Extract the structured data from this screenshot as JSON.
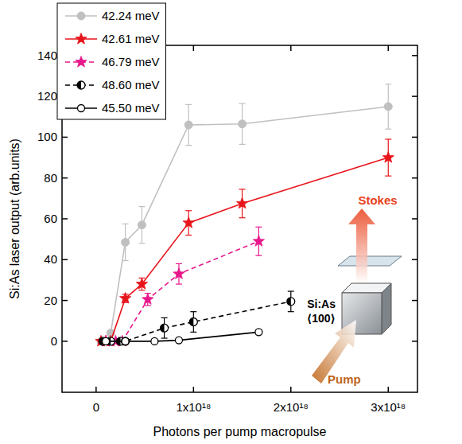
{
  "chart_data": {
    "type": "line",
    "x_label": "Photons per pump macropulse",
    "y_label": "Si:As laser output (arb.units)",
    "xlim": [
      -3.5e+17,
      3.3e+18
    ],
    "ylim": [
      -25,
      145
    ],
    "xticks": [
      0,
      {
        "value": 1e+18,
        "label": "1x10¹⁸"
      },
      {
        "value": 2e+18,
        "label": "2x10¹⁸"
      },
      {
        "value": 3e+18,
        "label": "3x10¹⁸"
      }
    ],
    "yticks": [
      0,
      20,
      40,
      60,
      80,
      100,
      120,
      140
    ],
    "legend": "top-left",
    "annotations": [
      "Stokes",
      "Si:As",
      "⟨100⟩",
      "Pump"
    ],
    "series": [
      {
        "name": "42.24 meV",
        "color": "#c0c0c0",
        "marker": "circle",
        "line_style": "solid",
        "x": [
          5e+16,
          1e+17,
          1.5e+17,
          3e+17,
          4.7e+17,
          9.5e+17,
          1.5e+18,
          3e+18
        ],
        "values": [
          0,
          0,
          4,
          48.5,
          57,
          106,
          106.5,
          115
        ],
        "errors": [
          0,
          0,
          0,
          9,
          9,
          10,
          10,
          11
        ]
      },
      {
        "name": "42.61 meV",
        "color": "#e8141b",
        "marker": "star",
        "line_style": "solid",
        "x": [
          5e+16,
          1e+17,
          1.5e+17,
          3e+17,
          4.7e+17,
          9.5e+17,
          1.5e+18,
          3e+18
        ],
        "values": [
          0,
          0,
          0,
          21,
          28,
          58,
          67.5,
          90
        ],
        "errors": [
          0,
          0,
          0,
          2,
          3,
          6,
          7,
          9
        ]
      },
      {
        "name": "46.79 meV",
        "color": "#e8188c",
        "marker": "star",
        "line_style": "dashed",
        "x": [
          1e+17,
          2e+17,
          2.7e+17,
          5.3e+17,
          8.5e+17,
          1.67e+18
        ],
        "values": [
          0,
          0,
          0,
          20.5,
          33,
          49
        ],
        "errors": [
          0,
          0,
          0,
          3,
          5,
          7
        ]
      },
      {
        "name": "48.60 meV",
        "color": "#000000",
        "marker": "half-circle",
        "line_style": "dashed",
        "x": [
          7e+16,
          1.5e+17,
          2.5e+17,
          3e+17,
          7e+17,
          1e+18,
          2e+18
        ],
        "values": [
          0,
          0,
          0,
          0,
          6.5,
          9.5,
          19.5
        ],
        "errors": [
          0,
          0,
          0,
          0,
          5,
          5,
          5
        ]
      },
      {
        "name": "45.50 meV",
        "color": "#000000",
        "marker": "open-circle",
        "line_style": "solid",
        "x": [
          1e+17,
          3e+17,
          6e+17,
          8.5e+17,
          1.67e+18
        ],
        "values": [
          0,
          0,
          0,
          0.5,
          4.5
        ],
        "errors": [
          0,
          0,
          0,
          0,
          1
        ]
      }
    ]
  }
}
